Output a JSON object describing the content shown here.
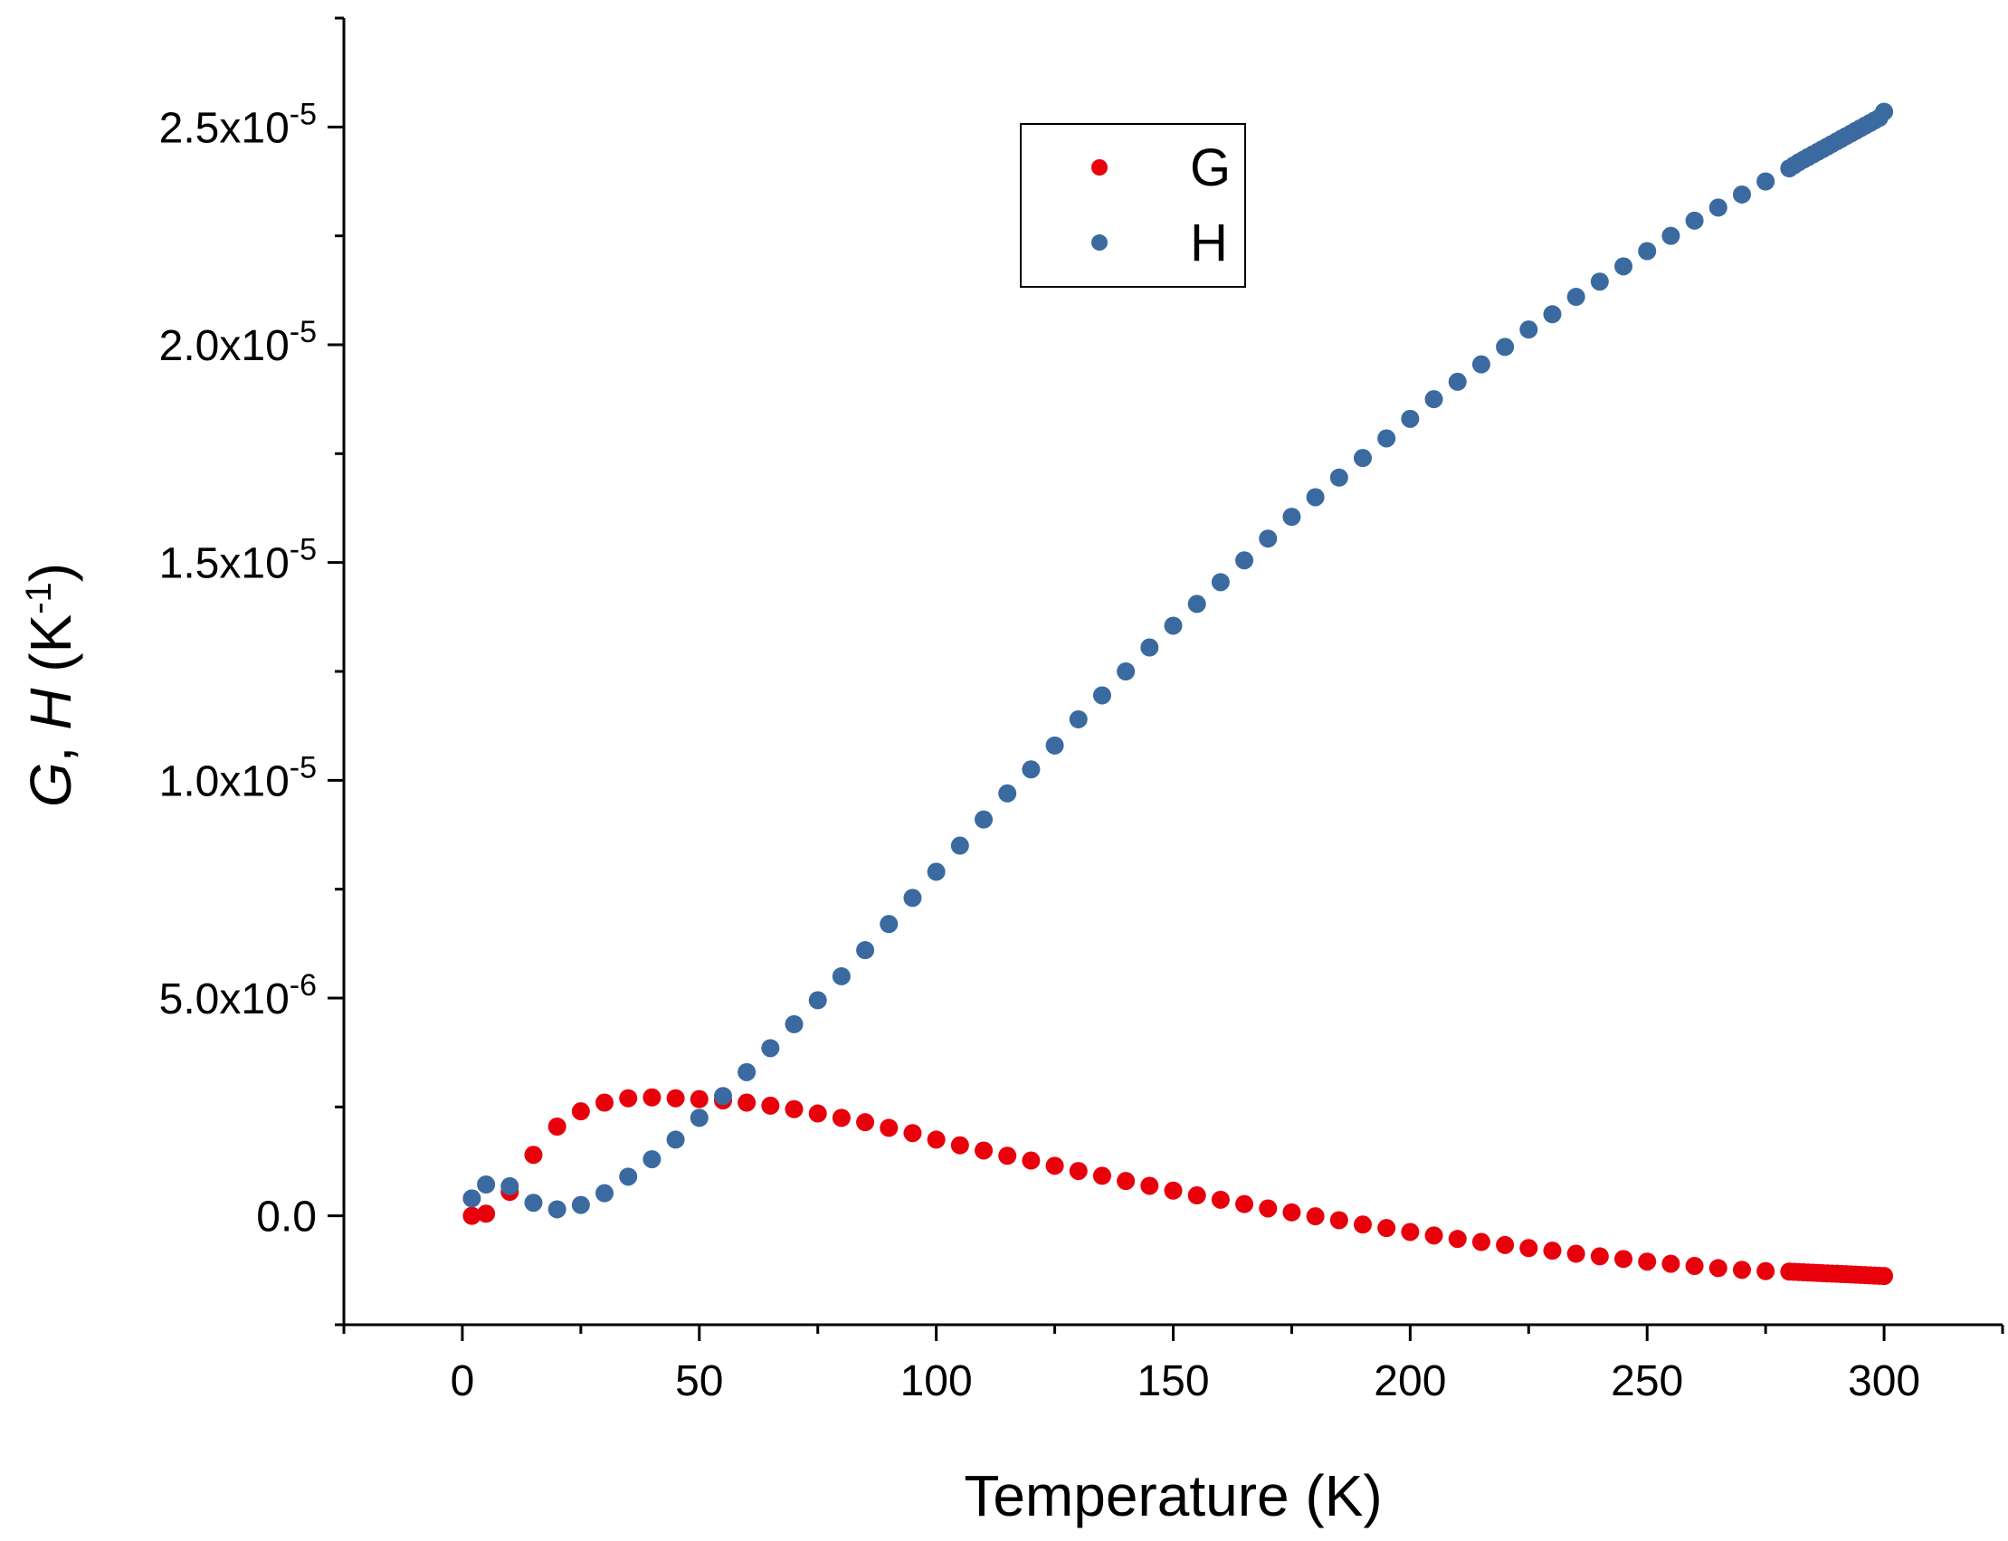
{
  "chart_data": {
    "type": "scatter",
    "title": "",
    "xlabel": "Temperature (K)",
    "ylabel": {
      "parts": [
        {
          "text": "G",
          "italic": true
        },
        {
          "text": ", ",
          "italic": false
        },
        {
          "text": "H",
          "italic": true
        },
        {
          "text": " (K",
          "italic": false
        },
        {
          "text": "-1",
          "superscript": true
        },
        {
          "text": ")",
          "italic": false
        }
      ]
    },
    "xlim": [
      -25,
      325
    ],
    "ylim": [
      -2.5e-06,
      2.75e-05
    ],
    "xticks": [
      {
        "value": 0,
        "label": "0"
      },
      {
        "value": 50,
        "label": "50"
      },
      {
        "value": 100,
        "label": "100"
      },
      {
        "value": 150,
        "label": "150"
      },
      {
        "value": 200,
        "label": "200"
      },
      {
        "value": 250,
        "label": "250"
      },
      {
        "value": 300,
        "label": "300"
      }
    ],
    "yticks": [
      {
        "value": 0,
        "mantissa": "0.0",
        "exponent": ""
      },
      {
        "value": 5e-06,
        "mantissa": "5.0x10",
        "exponent": "-6"
      },
      {
        "value": 1e-05,
        "mantissa": "1.0x10",
        "exponent": "-5"
      },
      {
        "value": 1.5e-05,
        "mantissa": "1.5x10",
        "exponent": "-5"
      },
      {
        "value": 2e-05,
        "mantissa": "2.0x10",
        "exponent": "-5"
      },
      {
        "value": 2.5e-05,
        "mantissa": "2.5x10",
        "exponent": "-5"
      }
    ],
    "legend": {
      "position": "top-center"
    },
    "series": [
      {
        "name": "G",
        "color": "#e8000b",
        "x": [
          2,
          5,
          10,
          15,
          20,
          25,
          30,
          35,
          40,
          45,
          50,
          55,
          60,
          65,
          70,
          75,
          80,
          85,
          90,
          95,
          100,
          105,
          110,
          115,
          120,
          125,
          130,
          135,
          140,
          145,
          150,
          155,
          160,
          165,
          170,
          175,
          180,
          185,
          190,
          195,
          200,
          205,
          210,
          215,
          220,
          225,
          230,
          235,
          240,
          245,
          250,
          255,
          260,
          265,
          270,
          275,
          280,
          281,
          282,
          283,
          284,
          285,
          286,
          287,
          288,
          289,
          290,
          291,
          292,
          293,
          294,
          295,
          296,
          297,
          298,
          299,
          300
        ],
        "y": [
          0.0,
          5e-08,
          5.5e-07,
          1.4e-06,
          2.05e-06,
          2.4e-06,
          2.6e-06,
          2.7e-06,
          2.72e-06,
          2.7e-06,
          2.68e-06,
          2.65e-06,
          2.6e-06,
          2.53e-06,
          2.45e-06,
          2.35e-06,
          2.25e-06,
          2.15e-06,
          2.02e-06,
          1.9e-06,
          1.75e-06,
          1.62e-06,
          1.5e-06,
          1.38e-06,
          1.27e-06,
          1.15e-06,
          1.03e-06,
          9.2e-07,
          8e-07,
          6.9e-07,
          5.8e-07,
          4.7e-07,
          3.7e-07,
          2.7e-07,
          1.7e-07,
          8e-08,
          -1e-08,
          -1e-07,
          -2e-07,
          -2.8e-07,
          -3.7e-07,
          -4.5e-07,
          -5.3e-07,
          -6e-07,
          -6.7e-07,
          -7.4e-07,
          -8e-07,
          -8.7e-07,
          -9.3e-07,
          -9.9e-07,
          -1.05e-06,
          -1.1e-06,
          -1.15e-06,
          -1.2e-06,
          -1.24e-06,
          -1.27e-06,
          -1.28e-06,
          -1.285e-06,
          -1.29e-06,
          -1.295e-06,
          -1.3e-06,
          -1.305e-06,
          -1.31e-06,
          -1.315e-06,
          -1.32e-06,
          -1.325e-06,
          -1.33e-06,
          -1.335e-06,
          -1.34e-06,
          -1.345e-06,
          -1.35e-06,
          -1.355e-06,
          -1.36e-06,
          -1.365e-06,
          -1.37e-06,
          -1.375e-06,
          -1.38e-06
        ]
      },
      {
        "name": "H",
        "color": "#3a6aa0",
        "x": [
          2,
          5,
          10,
          15,
          20,
          25,
          30,
          35,
          40,
          45,
          50,
          55,
          60,
          65,
          70,
          75,
          80,
          85,
          90,
          95,
          100,
          105,
          110,
          115,
          120,
          125,
          130,
          135,
          140,
          145,
          150,
          155,
          160,
          165,
          170,
          175,
          180,
          185,
          190,
          195,
          200,
          205,
          210,
          215,
          220,
          225,
          230,
          235,
          240,
          245,
          250,
          255,
          260,
          265,
          270,
          275,
          280,
          281,
          282,
          283,
          284,
          285,
          286,
          287,
          288,
          289,
          290,
          291,
          292,
          293,
          294,
          295,
          296,
          297,
          298,
          299,
          300
        ],
        "y": [
          4e-07,
          7.2e-07,
          6.8e-07,
          3e-07,
          1.5e-07,
          2.5e-07,
          5.2e-07,
          9e-07,
          1.3e-06,
          1.75e-06,
          2.25e-06,
          2.75e-06,
          3.3e-06,
          3.85e-06,
          4.4e-06,
          4.95e-06,
          5.5e-06,
          6.1e-06,
          6.7e-06,
          7.3e-06,
          7.9e-06,
          8.5e-06,
          9.1e-06,
          9.7e-06,
          1.025e-05,
          1.08e-05,
          1.14e-05,
          1.195e-05,
          1.25e-05,
          1.305e-05,
          1.355e-05,
          1.405e-05,
          1.455e-05,
          1.505e-05,
          1.555e-05,
          1.605e-05,
          1.65e-05,
          1.695e-05,
          1.74e-05,
          1.785e-05,
          1.83e-05,
          1.875e-05,
          1.915e-05,
          1.955e-05,
          1.995e-05,
          2.035e-05,
          2.07e-05,
          2.11e-05,
          2.145e-05,
          2.18e-05,
          2.215e-05,
          2.25e-05,
          2.285e-05,
          2.315e-05,
          2.345e-05,
          2.375e-05,
          2.405e-05,
          2.412e-05,
          2.419e-05,
          2.425e-05,
          2.431e-05,
          2.437e-05,
          2.443e-05,
          2.449e-05,
          2.455e-05,
          2.461e-05,
          2.467e-05,
          2.473e-05,
          2.479e-05,
          2.485e-05,
          2.491e-05,
          2.497e-05,
          2.503e-05,
          2.509e-05,
          2.515e-05,
          2.521e-05,
          2.535e-05
        ]
      }
    ]
  }
}
